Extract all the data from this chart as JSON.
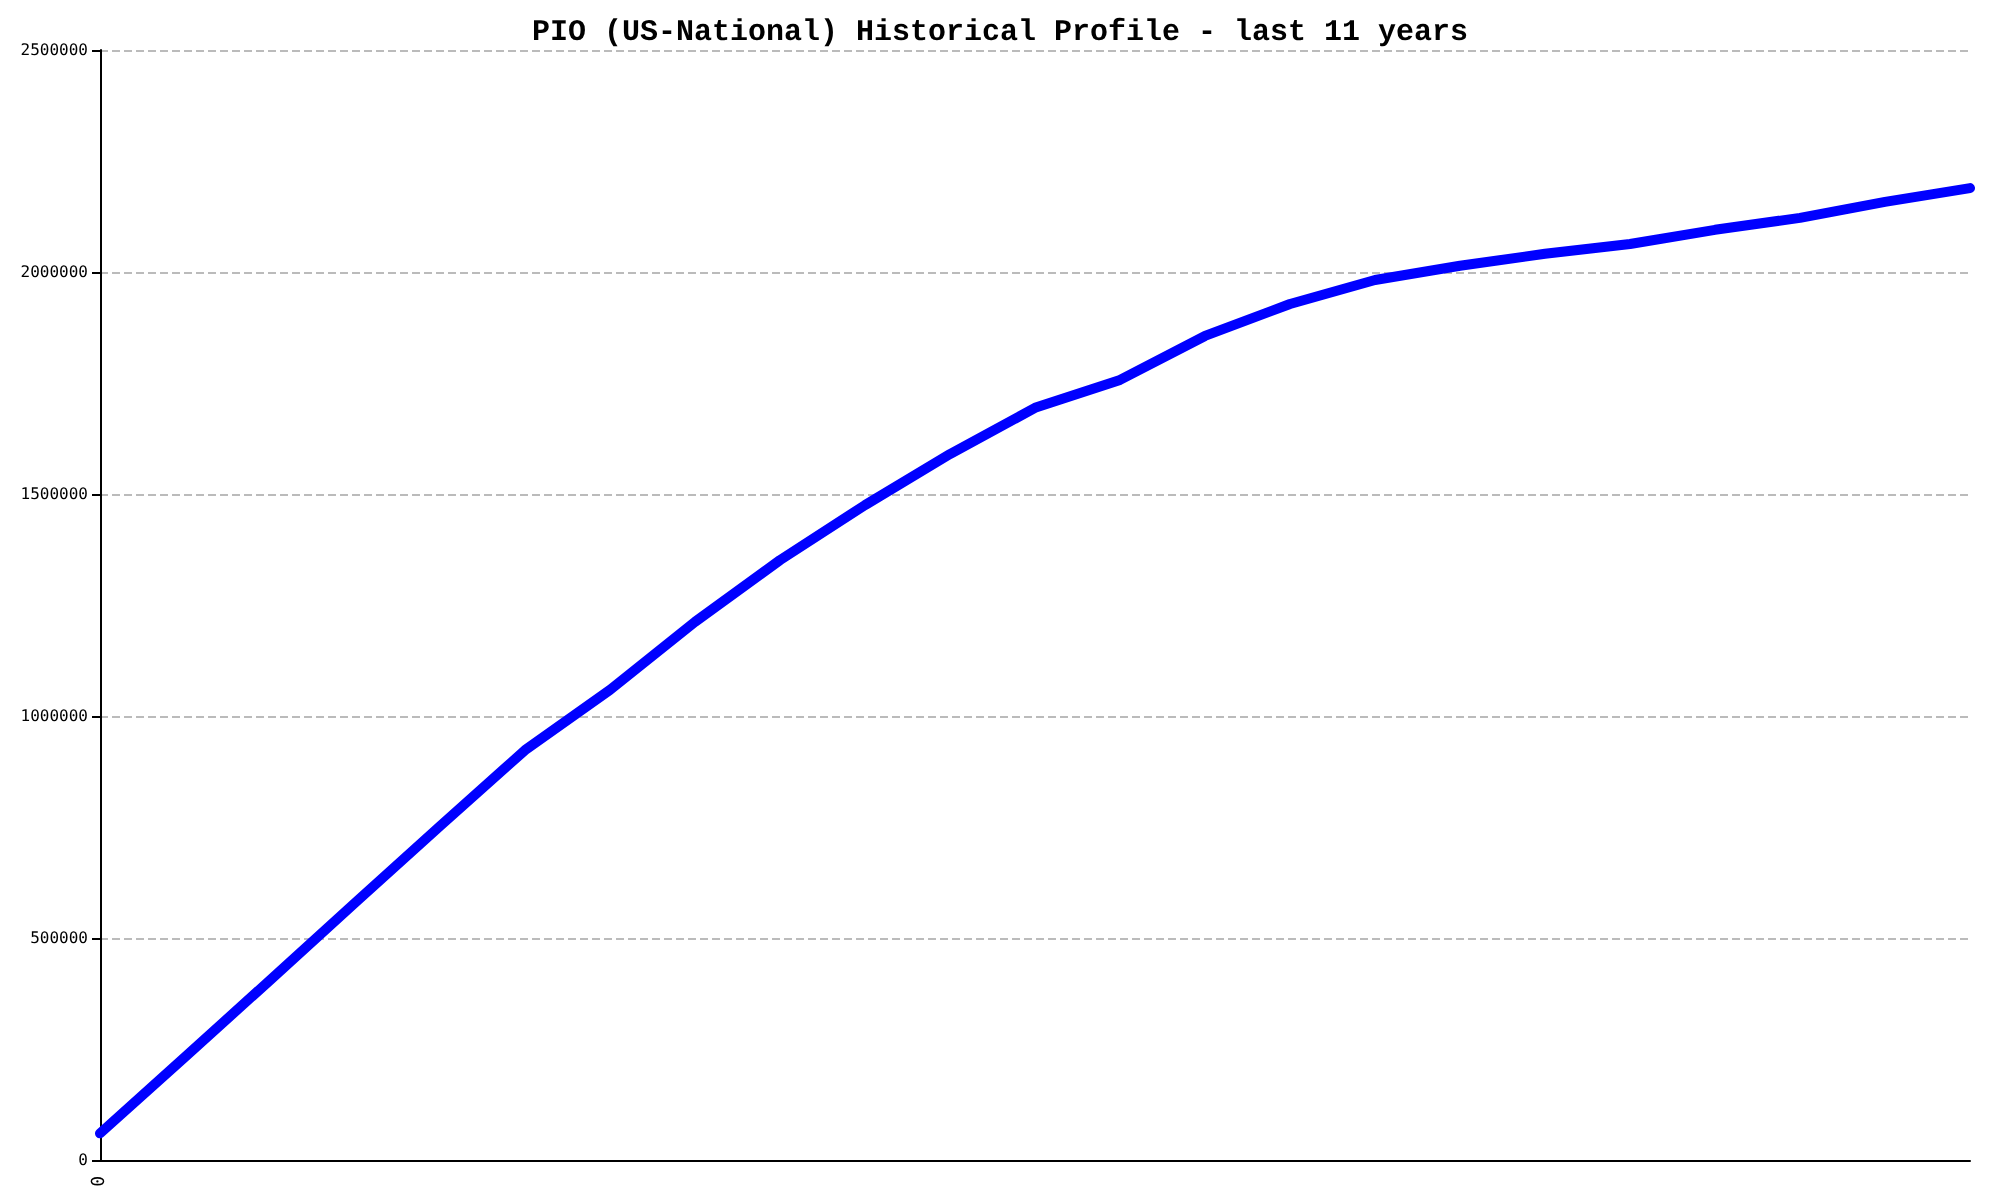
{
  "chart_data": {
    "type": "line",
    "title": "PIO (US-National) Historical Profile - last 11 years",
    "categories": [
      "0",
      null,
      null,
      null,
      null,
      null,
      null,
      null,
      null,
      null,
      null,
      null,
      null,
      null,
      null,
      null,
      null,
      null,
      null,
      null,
      null,
      null,
      null
    ],
    "series": [
      {
        "color": "#0000ff",
        "values": [
          60000,
          232000,
          405000,
          579000,
          752000,
          923000,
          1059000,
          1212000,
          1351000,
          1475000,
          1590000,
          1694000,
          1757000,
          1856000,
          1928000,
          1982000,
          2014000,
          2041000,
          2063000,
          2095000,
          2122000,
          2158000,
          2189000
        ]
      }
    ],
    "ylim": [
      0,
      2500000
    ],
    "yticks": [
      0,
      500000,
      1000000,
      1500000,
      2000000,
      2500000
    ],
    "grid": "y",
    "marker": "none",
    "line_style": "solid"
  }
}
